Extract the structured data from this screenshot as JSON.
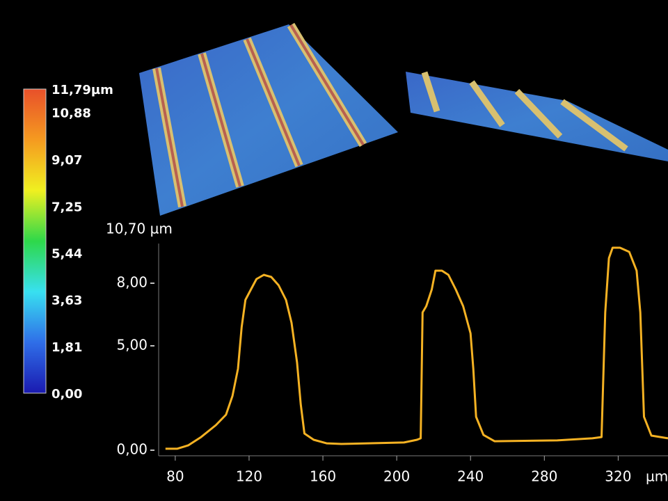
{
  "chart_data": {
    "type": "line",
    "x": [
      74.7,
      81,
      87,
      94,
      102,
      107.5,
      111,
      114,
      116,
      118,
      121,
      124,
      128,
      132,
      136,
      140,
      143,
      146,
      148,
      150,
      155,
      162,
      170,
      204,
      211,
      213,
      214,
      216,
      219,
      221,
      224.5,
      228,
      232,
      236,
      240,
      241.5,
      243,
      247,
      253,
      287,
      306,
      311,
      313,
      315,
      317,
      321,
      326,
      330,
      332,
      334,
      338,
      347
    ],
    "values": [
      0.07,
      0.07,
      0.23,
      0.63,
      1.2,
      1.7,
      2.6,
      3.9,
      5.9,
      7.2,
      7.7,
      8.2,
      8.4,
      8.3,
      7.9,
      7.2,
      6.1,
      4.2,
      2.2,
      0.8,
      0.5,
      0.33,
      0.3,
      0.37,
      0.5,
      0.57,
      6.6,
      6.9,
      7.7,
      8.6,
      8.6,
      8.4,
      7.7,
      6.9,
      5.6,
      3.9,
      1.6,
      0.73,
      0.43,
      0.47,
      0.57,
      0.63,
      6.6,
      9.2,
      9.7,
      9.7,
      9.5,
      8.6,
      6.6,
      1.6,
      0.7,
      0.57
    ],
    "color": "#f5b223",
    "xlim": [
      71,
      347
    ],
    "ylim": [
      0,
      10.7
    ],
    "xticks": [
      80,
      120,
      160,
      200,
      240,
      280,
      320
    ],
    "yticks": [
      {
        "value": 0,
        "label": "0,00"
      },
      {
        "value": 5,
        "label": "5,00"
      },
      {
        "value": 8,
        "label": "8,00"
      },
      {
        "value": 10.7,
        "label": "10,70 µm"
      }
    ],
    "x_label": "µm",
    "colorbar": {
      "range": [
        0,
        11.79
      ],
      "colors": [
        "#1a1ab0",
        "#2f6ee8",
        "#38e0f0",
        "#2ed84a",
        "#f0f020",
        "#f59a20",
        "#e8502a"
      ],
      "ticks": [
        {
          "value": 11.79,
          "label": "11,79µm"
        },
        {
          "value": 10.88,
          "label": "10,88"
        },
        {
          "value": 9.07,
          "label": "9,07"
        },
        {
          "value": 7.25,
          "label": "7,25"
        },
        {
          "value": 5.44,
          "label": "5,44"
        },
        {
          "value": 3.63,
          "label": "3,63"
        },
        {
          "value": 1.81,
          "label": "1,81"
        },
        {
          "value": 0,
          "label": "0,00"
        }
      ]
    }
  }
}
